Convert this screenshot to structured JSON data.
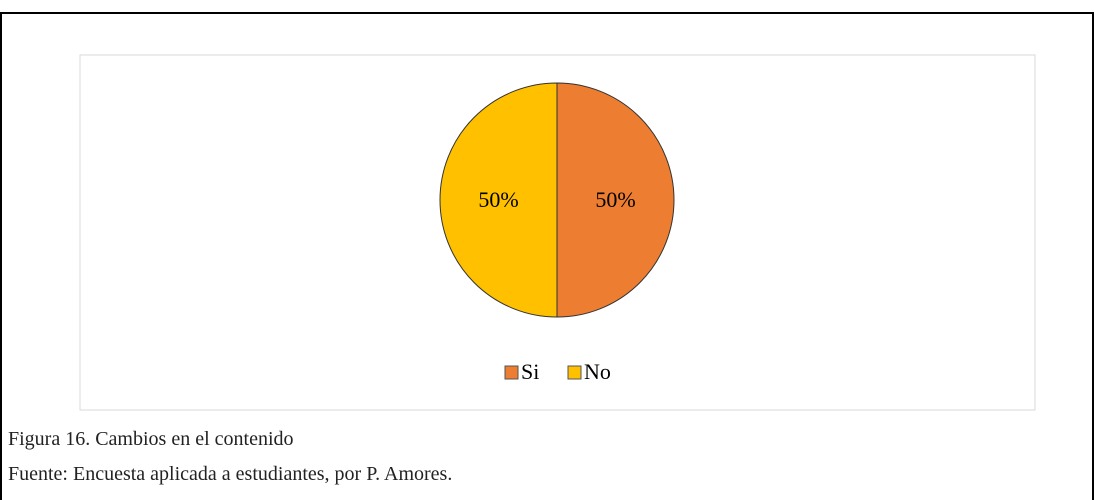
{
  "chart_data": {
    "type": "pie",
    "categories": [
      "Si",
      "No"
    ],
    "values": [
      50,
      50
    ],
    "value_labels": [
      "50%",
      "50%"
    ],
    "colors": [
      "#ED7D31",
      "#FFC000"
    ],
    "legend": "bottom"
  },
  "caption": {
    "figure": "Figura 16. Cambios en el contenido",
    "source": "Fuente: Encuesta aplicada a estudiantes, por P. Amores."
  }
}
